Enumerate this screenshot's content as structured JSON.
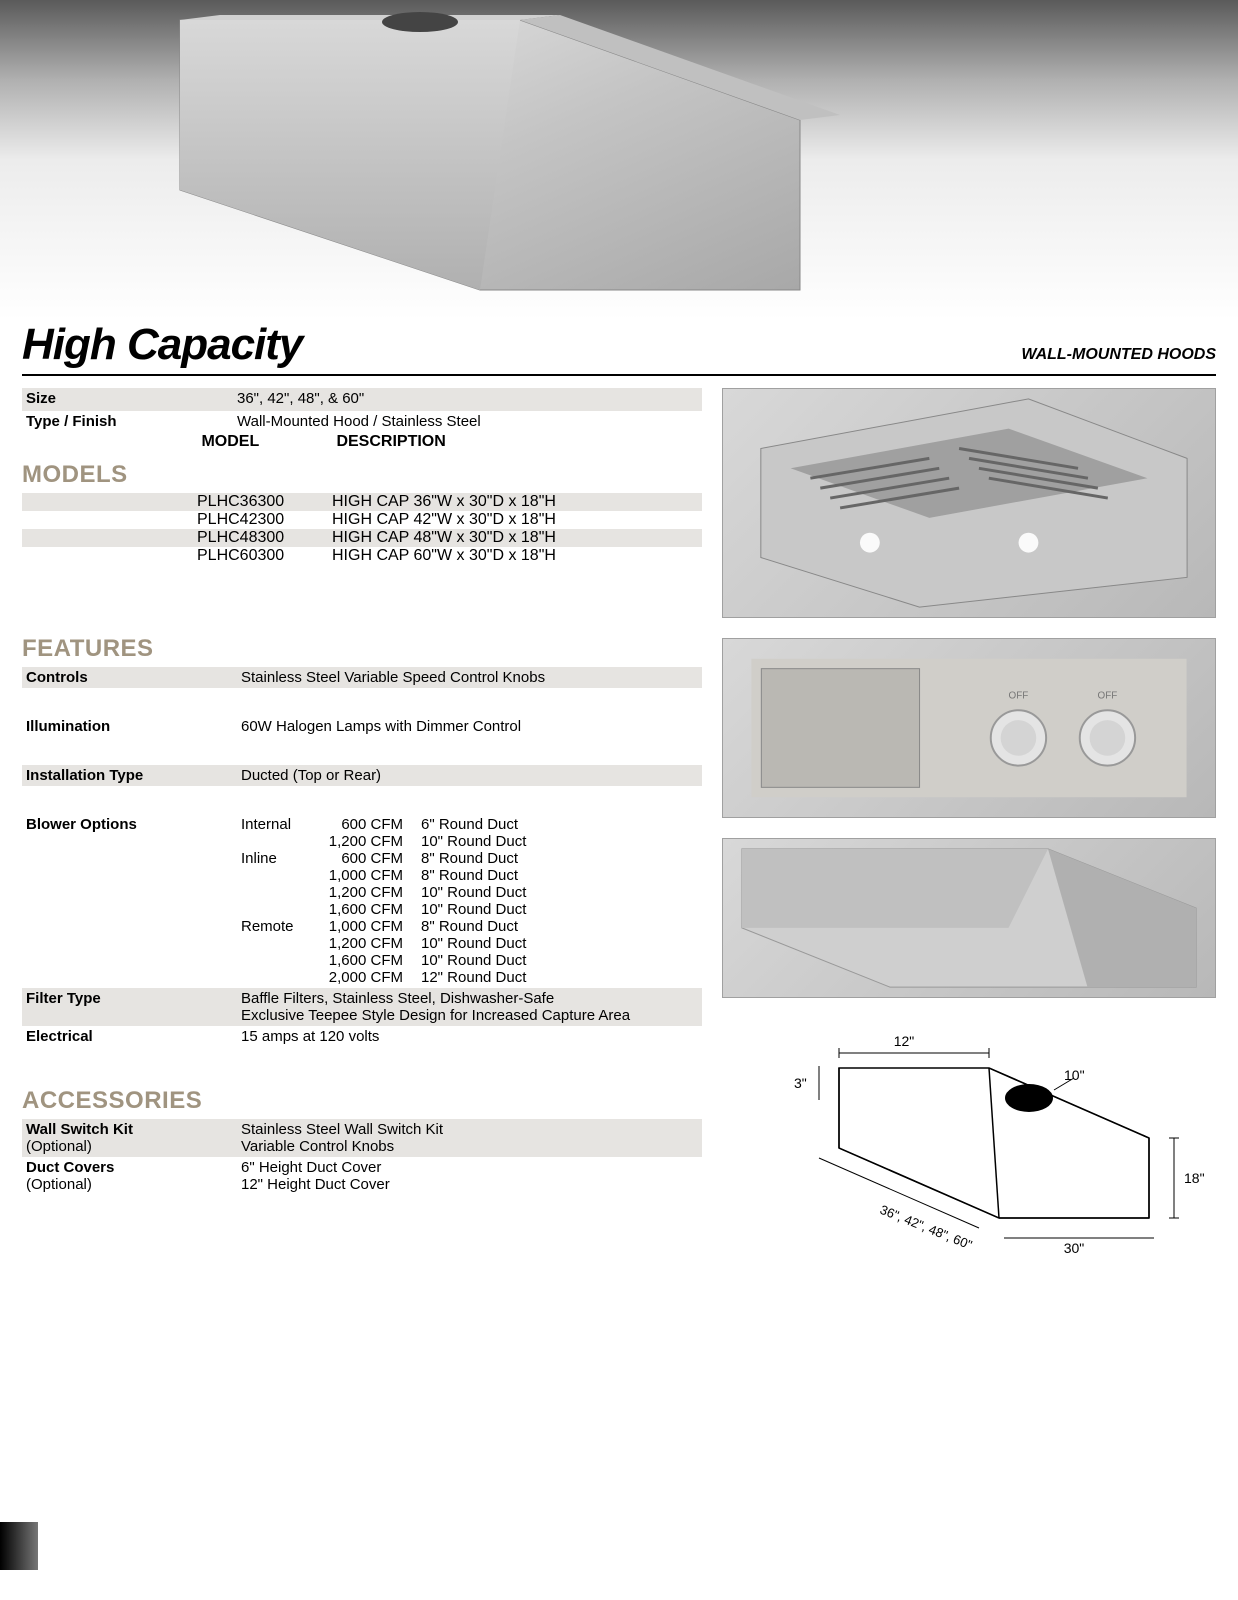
{
  "title": "High Capacity",
  "subtitle": "WALL-MOUNTED HOODS",
  "specs": [
    {
      "label": "Size",
      "value": "36\", 42\", 48\", & 60\"",
      "shaded": true
    },
    {
      "label": "Type / Finish",
      "value": "Wall-Mounted Hood / Stainless Steel",
      "shaded": false
    }
  ],
  "models": {
    "heading": "MODELS",
    "col_model": "MODEL",
    "col_desc": "DESCRIPTION",
    "rows": [
      {
        "model": "PLHC36300",
        "desc": "HIGH CAP 36\"W x 30\"D x 18\"H",
        "shaded": true
      },
      {
        "model": "PLHC42300",
        "desc": "HIGH CAP 42\"W x 30\"D x 18\"H",
        "shaded": false
      },
      {
        "model": "PLHC48300",
        "desc": "HIGH CAP 48\"W x 30\"D x 18\"H",
        "shaded": true
      },
      {
        "model": "PLHC60300",
        "desc": "HIGH CAP 60\"W x 30\"D x 18\"H",
        "shaded": false
      }
    ]
  },
  "features": {
    "heading": "FEATURES",
    "controls": {
      "label": "Controls",
      "value": "Stainless Steel Variable Speed Control Knobs"
    },
    "illumination": {
      "label": "Illumination",
      "value": "60W Halogen Lamps with Dimmer Control"
    },
    "installation": {
      "label": "Installation Type",
      "value": "Ducted (Top or Rear)"
    },
    "blower_label": "Blower Options",
    "blower": [
      {
        "type": "Internal",
        "cfm": "600 CFM",
        "duct": "6\" Round Duct"
      },
      {
        "type": "",
        "cfm": "1,200 CFM",
        "duct": "10\" Round Duct"
      },
      {
        "type": "Inline",
        "cfm": "600 CFM",
        "duct": "8\" Round Duct"
      },
      {
        "type": "",
        "cfm": "1,000 CFM",
        "duct": "8\" Round Duct"
      },
      {
        "type": "",
        "cfm": "1,200 CFM",
        "duct": "10\" Round Duct"
      },
      {
        "type": "",
        "cfm": "1,600 CFM",
        "duct": "10\" Round Duct"
      },
      {
        "type": "Remote",
        "cfm": "1,000 CFM",
        "duct": "8\" Round Duct"
      },
      {
        "type": "",
        "cfm": "1,200 CFM",
        "duct": "10\" Round Duct"
      },
      {
        "type": "",
        "cfm": "1,600 CFM",
        "duct": "10\" Round Duct"
      },
      {
        "type": "",
        "cfm": "2,000 CFM",
        "duct": "12\" Round Duct"
      }
    ],
    "filter": {
      "label": "Filter Type",
      "line1": "Baffle Filters, Stainless Steel, Dishwasher-Safe",
      "line2": "Exclusive Teepee Style Design for Increased Capture Area"
    },
    "electrical": {
      "label": "Electrical",
      "value": "15 amps at 120 volts"
    }
  },
  "accessories": {
    "heading": "ACCESSORIES",
    "wall_switch": {
      "label": "Wall Switch Kit",
      "opt": "(Optional)",
      "line1": "Stainless Steel Wall Switch Kit",
      "line2": "Variable Control Knobs"
    },
    "duct_covers": {
      "label": "Duct Covers",
      "opt": "(Optional)",
      "line1": "6\" Height Duct Cover",
      "line2": "12\" Height Duct Cover"
    }
  },
  "diagram": {
    "top": "12\"",
    "hole": "10\"",
    "left": "3\"",
    "widths": "36\", 42\", 48\", 60\"",
    "depth": "30\"",
    "height": "18\""
  },
  "colors": {
    "section_head": "#a09480",
    "shade": "#e6e4e1",
    "rule": "#000000"
  }
}
